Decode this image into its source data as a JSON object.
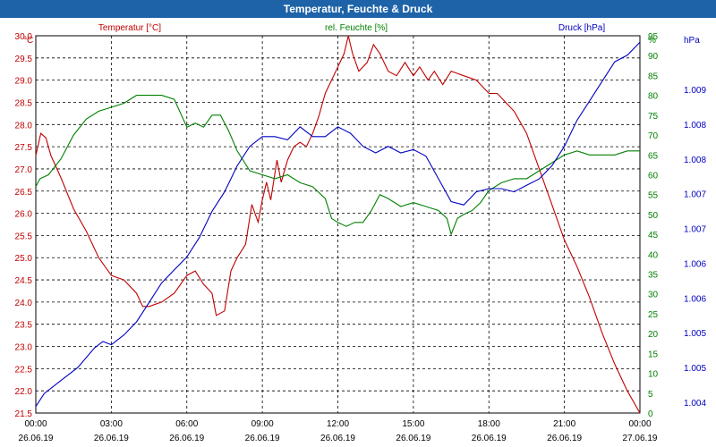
{
  "window": {
    "title": "Temperatur, Feuchte & Druck"
  },
  "colors": {
    "temperature": "#c00000",
    "humidity": "#008000",
    "pressure": "#0000c0",
    "titlebar": "#1e63a8",
    "grid": "#000000"
  },
  "chart_data": {
    "type": "line",
    "title": "Temperatur, Feuchte & Druck",
    "grid": true,
    "x_range": [
      "26.06.19 00:00",
      "27.06.19 00:00"
    ],
    "x_ticks": [
      {
        "time": "00:00",
        "date": "26.06.19"
      },
      {
        "time": "03:00",
        "date": "26.06.19"
      },
      {
        "time": "06:00",
        "date": "26.06.19"
      },
      {
        "time": "09:00",
        "date": "26.06.19"
      },
      {
        "time": "12:00",
        "date": "26.06.19"
      },
      {
        "time": "15:00",
        "date": "26.06.19"
      },
      {
        "time": "18:00",
        "date": "26.06.19"
      },
      {
        "time": "21:00",
        "date": "26.06.19"
      },
      {
        "time": "00:00",
        "date": "27.06.19"
      }
    ],
    "axes": {
      "temperature": {
        "label": "Temperatur [°C]",
        "unit": "°C",
        "range": [
          21.5,
          30.0
        ],
        "ticks": [
          "30.0",
          "29.5",
          "29.0",
          "28.5",
          "28.0",
          "27.5",
          "27.0",
          "26.5",
          "26.0",
          "25.5",
          "25.0",
          "24.5",
          "24.0",
          "23.5",
          "23.0",
          "22.5",
          "22.0",
          "21.5"
        ]
      },
      "humidity": {
        "label": "rel. Feuchte [%]",
        "unit": "%",
        "range": [
          0,
          95
        ],
        "ticks": [
          "95",
          "90",
          "85",
          "80",
          "75",
          "70",
          "65",
          "60",
          "55",
          "50",
          "45",
          "40",
          "35",
          "30",
          "25",
          "20",
          "15",
          "10",
          "5",
          "0"
        ]
      },
      "pressure": {
        "label": "Druck [hPa]",
        "unit": "hPa",
        "range": [
          1003.6,
          1009.4
        ],
        "ticks": [
          "1.009",
          "1.008",
          "1.008",
          "1.007",
          "1.007",
          "1.006",
          "1.006",
          "1.005",
          "1.005",
          "1.004"
        ]
      }
    },
    "series": [
      {
        "name": "Temperatur [°C]",
        "axis": "temperature",
        "points": [
          [
            "00:00",
            27.3
          ],
          [
            "00:12",
            27.8
          ],
          [
            "00:24",
            27.7
          ],
          [
            "00:36",
            27.3
          ],
          [
            "01:00",
            26.8
          ],
          [
            "01:30",
            26.1
          ],
          [
            "02:00",
            25.6
          ],
          [
            "02:30",
            25.0
          ],
          [
            "03:00",
            24.6
          ],
          [
            "03:30",
            24.5
          ],
          [
            "04:00",
            24.2
          ],
          [
            "04:15",
            23.9
          ],
          [
            "04:30",
            23.9
          ],
          [
            "05:00",
            24.0
          ],
          [
            "05:30",
            24.2
          ],
          [
            "06:00",
            24.6
          ],
          [
            "06:20",
            24.7
          ],
          [
            "06:40",
            24.4
          ],
          [
            "07:00",
            24.2
          ],
          [
            "07:10",
            23.7
          ],
          [
            "07:30",
            23.8
          ],
          [
            "07:45",
            24.7
          ],
          [
            "08:00",
            25.0
          ],
          [
            "08:20",
            25.3
          ],
          [
            "08:35",
            26.2
          ],
          [
            "08:50",
            25.8
          ],
          [
            "09:00",
            26.3
          ],
          [
            "09:10",
            26.7
          ],
          [
            "09:20",
            26.3
          ],
          [
            "09:35",
            27.2
          ],
          [
            "09:45",
            26.7
          ],
          [
            "10:00",
            27.2
          ],
          [
            "10:15",
            27.5
          ],
          [
            "10:30",
            27.6
          ],
          [
            "10:45",
            27.5
          ],
          [
            "11:00",
            27.8
          ],
          [
            "11:15",
            28.2
          ],
          [
            "11:30",
            28.7
          ],
          [
            "11:45",
            29.0
          ],
          [
            "12:00",
            29.3
          ],
          [
            "12:15",
            29.6
          ],
          [
            "12:25",
            30.0
          ],
          [
            "12:35",
            29.6
          ],
          [
            "12:50",
            29.2
          ],
          [
            "13:10",
            29.4
          ],
          [
            "13:25",
            29.8
          ],
          [
            "13:40",
            29.6
          ],
          [
            "14:00",
            29.2
          ],
          [
            "14:20",
            29.1
          ],
          [
            "14:40",
            29.4
          ],
          [
            "15:00",
            29.1
          ],
          [
            "15:15",
            29.3
          ],
          [
            "15:35",
            29.0
          ],
          [
            "15:50",
            29.2
          ],
          [
            "16:10",
            28.9
          ],
          [
            "16:30",
            29.2
          ],
          [
            "17:00",
            29.1
          ],
          [
            "17:30",
            29.0
          ],
          [
            "18:00",
            28.7
          ],
          [
            "18:20",
            28.7
          ],
          [
            "18:40",
            28.5
          ],
          [
            "19:00",
            28.3
          ],
          [
            "19:30",
            27.8
          ],
          [
            "20:00",
            27.0
          ],
          [
            "20:30",
            26.2
          ],
          [
            "21:00",
            25.4
          ],
          [
            "21:30",
            24.8
          ],
          [
            "22:00",
            24.1
          ],
          [
            "22:30",
            23.3
          ],
          [
            "23:00",
            22.6
          ],
          [
            "23:30",
            22.0
          ],
          [
            "24:00",
            21.5
          ]
        ]
      },
      {
        "name": "rel. Feuchte [%]",
        "axis": "humidity",
        "points": [
          [
            "00:00",
            57
          ],
          [
            "00:10",
            59
          ],
          [
            "00:30",
            60
          ],
          [
            "01:00",
            64
          ],
          [
            "01:30",
            70
          ],
          [
            "02:00",
            74
          ],
          [
            "02:30",
            76
          ],
          [
            "03:00",
            77
          ],
          [
            "03:30",
            78
          ],
          [
            "04:00",
            80
          ],
          [
            "04:30",
            80
          ],
          [
            "05:00",
            80
          ],
          [
            "05:30",
            79
          ],
          [
            "06:00",
            72
          ],
          [
            "06:20",
            73
          ],
          [
            "06:40",
            72
          ],
          [
            "07:00",
            75
          ],
          [
            "07:20",
            75
          ],
          [
            "07:40",
            71
          ],
          [
            "08:00",
            66
          ],
          [
            "08:30",
            61
          ],
          [
            "09:00",
            60
          ],
          [
            "09:30",
            59
          ],
          [
            "10:00",
            60
          ],
          [
            "10:30",
            58
          ],
          [
            "11:00",
            57
          ],
          [
            "11:30",
            54
          ],
          [
            "11:45",
            49
          ],
          [
            "12:00",
            48
          ],
          [
            "12:20",
            47
          ],
          [
            "12:40",
            48
          ],
          [
            "13:00",
            48
          ],
          [
            "13:20",
            51
          ],
          [
            "13:40",
            55
          ],
          [
            "14:00",
            54
          ],
          [
            "14:30",
            52
          ],
          [
            "15:00",
            53
          ],
          [
            "15:30",
            52
          ],
          [
            "16:00",
            51
          ],
          [
            "16:20",
            49
          ],
          [
            "16:30",
            45
          ],
          [
            "16:45",
            49
          ],
          [
            "17:00",
            50
          ],
          [
            "17:20",
            51
          ],
          [
            "17:40",
            53
          ],
          [
            "18:00",
            56
          ],
          [
            "18:30",
            58
          ],
          [
            "19:00",
            59
          ],
          [
            "19:30",
            59
          ],
          [
            "20:00",
            61
          ],
          [
            "20:30",
            63
          ],
          [
            "21:00",
            65
          ],
          [
            "21:30",
            66
          ],
          [
            "22:00",
            65
          ],
          [
            "22:30",
            65
          ],
          [
            "23:00",
            65
          ],
          [
            "23:30",
            66
          ],
          [
            "24:00",
            66
          ]
        ]
      },
      {
        "name": "Druck [hPa]",
        "axis": "pressure",
        "points": [
          [
            "00:00",
            1003.7
          ],
          [
            "00:20",
            1003.9
          ],
          [
            "01:00",
            1004.1
          ],
          [
            "01:40",
            1004.3
          ],
          [
            "02:20",
            1004.6
          ],
          [
            "02:40",
            1004.7
          ],
          [
            "03:00",
            1004.65
          ],
          [
            "03:30",
            1004.8
          ],
          [
            "04:00",
            1005.0
          ],
          [
            "04:30",
            1005.3
          ],
          [
            "05:00",
            1005.6
          ],
          [
            "05:30",
            1005.8
          ],
          [
            "06:00",
            1006.0
          ],
          [
            "06:30",
            1006.3
          ],
          [
            "07:00",
            1006.7
          ],
          [
            "07:30",
            1007.0
          ],
          [
            "08:00",
            1007.4
          ],
          [
            "08:30",
            1007.7
          ],
          [
            "09:00",
            1007.85
          ],
          [
            "09:30",
            1007.85
          ],
          [
            "10:00",
            1007.8
          ],
          [
            "10:30",
            1008.0
          ],
          [
            "11:00",
            1007.85
          ],
          [
            "11:30",
            1007.85
          ],
          [
            "12:00",
            1008.0
          ],
          [
            "12:30",
            1007.9
          ],
          [
            "13:00",
            1007.7
          ],
          [
            "13:30",
            1007.6
          ],
          [
            "14:00",
            1007.7
          ],
          [
            "14:30",
            1007.6
          ],
          [
            "15:00",
            1007.65
          ],
          [
            "15:30",
            1007.55
          ],
          [
            "16:00",
            1007.2
          ],
          [
            "16:30",
            1006.85
          ],
          [
            "17:00",
            1006.8
          ],
          [
            "17:30",
            1007.0
          ],
          [
            "18:00",
            1007.05
          ],
          [
            "18:30",
            1007.05
          ],
          [
            "19:00",
            1007.0
          ],
          [
            "19:30",
            1007.1
          ],
          [
            "20:00",
            1007.2
          ],
          [
            "20:30",
            1007.4
          ],
          [
            "21:00",
            1007.7
          ],
          [
            "21:30",
            1008.1
          ],
          [
            "22:00",
            1008.4
          ],
          [
            "22:30",
            1008.7
          ],
          [
            "23:00",
            1009.0
          ],
          [
            "23:30",
            1009.1
          ],
          [
            "24:00",
            1009.3
          ]
        ]
      }
    ]
  }
}
